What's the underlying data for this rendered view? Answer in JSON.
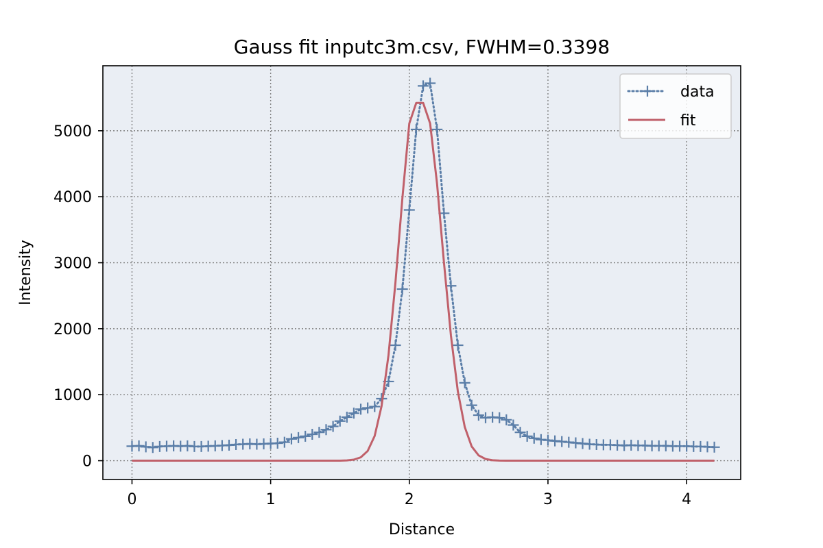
{
  "chart_data": {
    "type": "line",
    "title": "Gauss fit inputc3m.csv, FWHM=0.3398",
    "xlabel": "Distance",
    "ylabel": "Intensity",
    "xlim": [
      -0.21,
      4.39
    ],
    "ylim": [
      -285,
      5985
    ],
    "xticks": [
      0,
      1,
      2,
      3,
      4
    ],
    "yticks": [
      0,
      1000,
      2000,
      3000,
      4000,
      5000
    ],
    "grid": true,
    "legend_position": "top-right",
    "colors": {
      "plot_background": "#eaeef4",
      "data": "#5b7ea8",
      "fit": "#c0606a",
      "grid": "#808080"
    },
    "series": [
      {
        "name": "data",
        "style": "dotted-plus",
        "x": [
          0,
          0.05,
          0.1,
          0.15,
          0.2,
          0.25,
          0.3,
          0.35,
          0.4,
          0.45,
          0.5,
          0.55,
          0.6,
          0.65,
          0.7,
          0.75,
          0.8,
          0.85,
          0.9,
          0.95,
          1.0,
          1.05,
          1.1,
          1.15,
          1.2,
          1.25,
          1.3,
          1.35,
          1.4,
          1.45,
          1.5,
          1.55,
          1.6,
          1.65,
          1.7,
          1.75,
          1.8,
          1.85,
          1.9,
          1.95,
          2.0,
          2.05,
          2.1,
          2.15,
          2.2,
          2.25,
          2.3,
          2.35,
          2.4,
          2.45,
          2.5,
          2.55,
          2.6,
          2.65,
          2.7,
          2.75,
          2.8,
          2.85,
          2.9,
          2.95,
          3.0,
          3.05,
          3.1,
          3.15,
          3.2,
          3.25,
          3.3,
          3.35,
          3.4,
          3.45,
          3.5,
          3.55,
          3.6,
          3.65,
          3.7,
          3.75,
          3.8,
          3.85,
          3.9,
          3.95,
          4.0,
          4.05,
          4.1,
          4.15,
          4.2
        ],
        "y": [
          220,
          225,
          210,
          200,
          215,
          220,
          225,
          220,
          225,
          215,
          215,
          220,
          225,
          230,
          235,
          245,
          250,
          255,
          250,
          255,
          260,
          265,
          280,
          330,
          350,
          370,
          400,
          430,
          470,
          520,
          600,
          660,
          720,
          780,
          800,
          820,
          940,
          1200,
          1750,
          2600,
          3800,
          5020,
          5680,
          5720,
          5020,
          3750,
          2650,
          1750,
          1180,
          840,
          690,
          650,
          660,
          650,
          620,
          540,
          430,
          370,
          340,
          320,
          310,
          300,
          290,
          280,
          270,
          260,
          250,
          245,
          240,
          240,
          235,
          230,
          235,
          230,
          230,
          225,
          225,
          225,
          220,
          220,
          220,
          215,
          215,
          210,
          205
        ]
      },
      {
        "name": "fit",
        "style": "solid",
        "x": [
          0,
          1.5,
          1.55,
          1.6,
          1.65,
          1.7,
          1.75,
          1.8,
          1.85,
          1.9,
          1.95,
          2.0,
          2.05,
          2.1,
          2.15,
          2.2,
          2.25,
          2.3,
          2.35,
          2.4,
          2.45,
          2.5,
          2.55,
          2.6,
          2.65,
          2.7,
          2.75,
          2.8,
          4.2
        ],
        "y": [
          0,
          0,
          4,
          16,
          51,
          148,
          374,
          828,
          1601,
          2700,
          3977,
          5111,
          5422,
          5422,
          5111,
          4200,
          3000,
          1900,
          1050,
          510,
          215,
          80,
          25,
          7,
          2,
          0,
          0,
          0,
          0
        ]
      }
    ]
  }
}
